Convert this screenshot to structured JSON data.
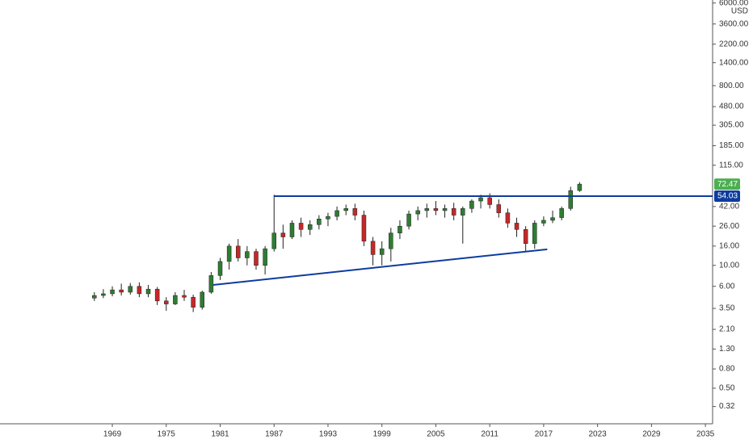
{
  "chart_data": {
    "type": "candlestick",
    "currency": "USD",
    "log_scale": true,
    "up_color": "#2e7d32",
    "down_color": "#c62828",
    "wick_color": "#222222",
    "x": [
      1967,
      1968,
      1969,
      1970,
      1971,
      1972,
      1973,
      1974,
      1975,
      1976,
      1977,
      1978,
      1979,
      1980,
      1981,
      1982,
      1983,
      1984,
      1985,
      1986,
      1987,
      1988,
      1989,
      1990,
      1991,
      1992,
      1993,
      1994,
      1995,
      1996,
      1997,
      1998,
      1999,
      2000,
      2001,
      2002,
      2003,
      2004,
      2005,
      2006,
      2007,
      2008,
      2009,
      2010,
      2011,
      2012,
      2013,
      2014,
      2015,
      2016,
      2017,
      2018,
      2019,
      2020,
      2021
    ],
    "open": [
      4.5,
      4.8,
      5.0,
      5.5,
      5.2,
      6.0,
      5.0,
      5.6,
      4.2,
      3.9,
      4.8,
      4.6,
      3.6,
      5.2,
      7.8,
      11,
      16,
      12,
      14,
      10,
      15,
      22,
      20,
      28,
      24,
      27,
      31,
      33,
      38,
      40,
      34,
      18,
      13,
      15,
      22,
      26,
      35,
      38,
      40,
      38,
      40,
      34,
      40,
      48,
      52,
      44,
      36,
      28,
      24,
      17,
      28,
      30,
      32,
      40,
      62
    ],
    "high": [
      5.2,
      5.6,
      6.0,
      6.4,
      6.5,
      6.6,
      6.2,
      5.9,
      4.6,
      5.2,
      5.5,
      4.9,
      5.4,
      8.5,
      12,
      17,
      19,
      16,
      15,
      16,
      56,
      27,
      30,
      32,
      30,
      34,
      36,
      42,
      44,
      45,
      38,
      20,
      18,
      25,
      30,
      38,
      42,
      45,
      48,
      44,
      46,
      42,
      50,
      56,
      58,
      50,
      40,
      32,
      26,
      30,
      33,
      38,
      42,
      68,
      76
    ],
    "low": [
      4.2,
      4.5,
      4.7,
      4.8,
      4.9,
      4.6,
      4.6,
      3.8,
      3.3,
      3.8,
      4.2,
      3.2,
      3.4,
      5.0,
      7.0,
      9,
      11,
      10,
      9,
      8,
      14,
      15,
      19,
      20,
      21,
      24,
      26,
      30,
      34,
      30,
      16,
      10,
      10,
      11,
      19,
      24,
      30,
      32,
      34,
      32,
      30,
      17,
      36,
      40,
      40,
      32,
      25,
      20,
      14,
      15,
      26,
      28,
      30,
      38,
      60
    ],
    "close": [
      4.8,
      5.0,
      5.5,
      5.2,
      6.0,
      5.0,
      5.6,
      4.2,
      3.9,
      4.8,
      4.6,
      3.6,
      5.2,
      7.8,
      11,
      16,
      12,
      14,
      10,
      15,
      22,
      20,
      28,
      24,
      27,
      31,
      33,
      38,
      40,
      34,
      18,
      13,
      15,
      22,
      26,
      35,
      38,
      40,
      38,
      40,
      34,
      40,
      48,
      52,
      44,
      36,
      28,
      24,
      17,
      28,
      30,
      32,
      40,
      62,
      72.47
    ],
    "xlim": [
      1956.5,
      2035.8
    ],
    "ylim": [
      0.21,
      6460
    ],
    "xticks": [
      1969,
      1975,
      1981,
      1987,
      1993,
      1999,
      2005,
      2011,
      2017,
      2023,
      2029,
      2035
    ],
    "yticks": [
      {
        "value": 6000,
        "label": "6000.00"
      },
      {
        "value": 3600,
        "label": "3600.00"
      },
      {
        "value": 2200,
        "label": "2200.00"
      },
      {
        "value": 1400,
        "label": "1400.00"
      },
      {
        "value": 800,
        "label": "800.00"
      },
      {
        "value": 480,
        "label": "480.00"
      },
      {
        "value": 305,
        "label": "305.00"
      },
      {
        "value": 185,
        "label": "185.00"
      },
      {
        "value": 115,
        "label": "115.00"
      },
      {
        "value": 42,
        "label": "42.00"
      },
      {
        "value": 26,
        "label": "26.00"
      },
      {
        "value": 16,
        "label": "16.00"
      },
      {
        "value": 10,
        "label": "10.00"
      },
      {
        "value": 6,
        "label": "6.00"
      },
      {
        "value": 3.5,
        "label": "3.50"
      },
      {
        "value": 2.1,
        "label": "2.10"
      },
      {
        "value": 1.3,
        "label": "1.30"
      },
      {
        "value": 0.8,
        "label": "0.80"
      },
      {
        "value": 0.5,
        "label": "0.50"
      },
      {
        "value": 0.32,
        "label": "0.32"
      }
    ],
    "last_price": 72.47,
    "last_price_color": "#4caf50",
    "level_price": 54.03,
    "level_price_color": "#0d3c9e",
    "trend_lines": [
      {
        "x": [
          1987.0,
          2035.8
        ],
        "y": [
          54.03,
          54.03
        ],
        "color": "#0d3c9e"
      },
      {
        "x": [
          1980.2,
          2017.4
        ],
        "y": [
          6.2,
          14.8
        ],
        "color": "#0d3c9e"
      }
    ]
  }
}
